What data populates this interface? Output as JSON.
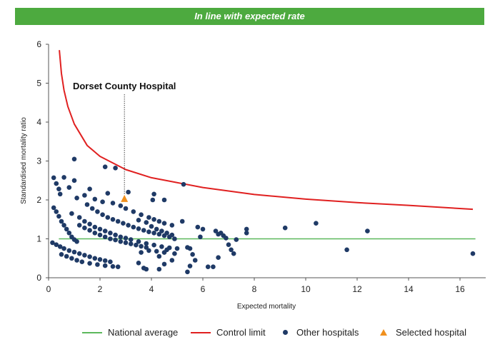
{
  "banner": {
    "text": "In line with expected rate"
  },
  "legend": {
    "national_average": "National average",
    "control_limit": "Control limit",
    "other_hospitals": "Other hospitals",
    "selected_hospital": "Selected hospital"
  },
  "colors": {
    "banner": "#4daa3f",
    "national_average": "#5cb85c",
    "control_limit": "#e02020",
    "other_hospitals": "#1f3a66",
    "selected_hospital": "#f0901e"
  },
  "chart_data": {
    "type": "scatter",
    "title": "",
    "xlabel": "Expected mortality",
    "ylabel": "Standardised mortality ratio",
    "xlim": [
      0,
      17
    ],
    "ylim": [
      0,
      6
    ],
    "xticks": [
      0,
      2,
      4,
      6,
      8,
      10,
      12,
      14,
      16
    ],
    "yticks": [
      0,
      1,
      2,
      3,
      4,
      5,
      6
    ],
    "grid": false,
    "legend_position": "bottom",
    "annotation": {
      "text": "Dorset County Hospital",
      "x": 2.95,
      "y": 2.0
    },
    "national_average": {
      "name": "National average",
      "x": [
        0.4,
        16.6
      ],
      "y": [
        1,
        1
      ]
    },
    "control_limit": {
      "name": "Control limit",
      "x": [
        0.42,
        0.5,
        0.6,
        0.75,
        1.0,
        1.5,
        2.0,
        3.0,
        4.0,
        6.0,
        8.0,
        10.0,
        12.0,
        14.0,
        16.5
      ],
      "y": [
        5.85,
        5.25,
        4.82,
        4.4,
        3.95,
        3.4,
        3.12,
        2.78,
        2.57,
        2.32,
        2.14,
        2.02,
        1.93,
        1.86,
        1.76
      ]
    },
    "selected_hospital": {
      "name": "Selected hospital",
      "x": 2.95,
      "y": 2.02
    },
    "other_hospitals": {
      "name": "Other hospitals",
      "points": [
        [
          0.2,
          2.57
        ],
        [
          0.3,
          2.42
        ],
        [
          0.4,
          2.28
        ],
        [
          0.45,
          2.15
        ],
        [
          0.6,
          2.58
        ],
        [
          0.8,
          2.32
        ],
        [
          1.0,
          3.05
        ],
        [
          1.0,
          2.5
        ],
        [
          1.1,
          2.05
        ],
        [
          1.4,
          2.12
        ],
        [
          1.6,
          2.28
        ],
        [
          1.8,
          2.02
        ],
        [
          2.2,
          2.85
        ],
        [
          2.6,
          2.82
        ],
        [
          2.3,
          2.17
        ],
        [
          2.1,
          1.95
        ],
        [
          3.1,
          2.2
        ],
        [
          4.1,
          2.15
        ],
        [
          4.05,
          2.0
        ],
        [
          4.5,
          2.0
        ],
        [
          5.25,
          2.4
        ],
        [
          0.2,
          1.8
        ],
        [
          0.3,
          1.7
        ],
        [
          0.4,
          1.58
        ],
        [
          0.5,
          1.45
        ],
        [
          0.6,
          1.35
        ],
        [
          0.7,
          1.25
        ],
        [
          0.8,
          1.15
        ],
        [
          0.9,
          1.05
        ],
        [
          1.0,
          0.98
        ],
        [
          1.1,
          0.93
        ],
        [
          0.9,
          1.65
        ],
        [
          1.2,
          1.55
        ],
        [
          1.4,
          1.45
        ],
        [
          1.6,
          1.38
        ],
        [
          1.8,
          1.3
        ],
        [
          2.0,
          1.25
        ],
        [
          2.2,
          1.2
        ],
        [
          2.4,
          1.15
        ],
        [
          2.6,
          1.1
        ],
        [
          2.8,
          1.05
        ],
        [
          3.0,
          1.02
        ],
        [
          3.2,
          0.98
        ],
        [
          3.5,
          0.93
        ],
        [
          3.8,
          0.88
        ],
        [
          4.1,
          0.84
        ],
        [
          4.4,
          0.8
        ],
        [
          4.7,
          0.77
        ],
        [
          1.2,
          1.35
        ],
        [
          1.4,
          1.28
        ],
        [
          1.6,
          1.22
        ],
        [
          1.8,
          1.15
        ],
        [
          2.0,
          1.1
        ],
        [
          2.2,
          1.05
        ],
        [
          2.4,
          1.0
        ],
        [
          2.6,
          0.97
        ],
        [
          2.8,
          0.93
        ],
        [
          3.0,
          0.9
        ],
        [
          3.2,
          0.87
        ],
        [
          3.4,
          0.84
        ],
        [
          3.6,
          0.81
        ],
        [
          3.8,
          0.78
        ],
        [
          0.15,
          0.9
        ],
        [
          0.3,
          0.85
        ],
        [
          0.45,
          0.8
        ],
        [
          0.6,
          0.75
        ],
        [
          0.8,
          0.7
        ],
        [
          1.0,
          0.66
        ],
        [
          1.2,
          0.62
        ],
        [
          1.4,
          0.58
        ],
        [
          1.6,
          0.54
        ],
        [
          1.8,
          0.5
        ],
        [
          2.0,
          0.47
        ],
        [
          2.2,
          0.44
        ],
        [
          2.4,
          0.41
        ],
        [
          0.5,
          0.6
        ],
        [
          0.7,
          0.55
        ],
        [
          0.9,
          0.5
        ],
        [
          1.1,
          0.45
        ],
        [
          1.3,
          0.41
        ],
        [
          1.6,
          0.37
        ],
        [
          1.9,
          0.34
        ],
        [
          2.2,
          0.31
        ],
        [
          2.5,
          0.29
        ],
        [
          2.7,
          0.28
        ],
        [
          1.5,
          1.88
        ],
        [
          1.7,
          1.78
        ],
        [
          1.9,
          1.7
        ],
        [
          2.1,
          1.62
        ],
        [
          2.3,
          1.55
        ],
        [
          2.5,
          1.5
        ],
        [
          2.7,
          1.45
        ],
        [
          2.9,
          1.4
        ],
        [
          3.1,
          1.35
        ],
        [
          3.3,
          1.3
        ],
        [
          3.5,
          1.26
        ],
        [
          3.7,
          1.22
        ],
        [
          3.9,
          1.18
        ],
        [
          4.1,
          1.15
        ],
        [
          4.3,
          1.12
        ],
        [
          4.5,
          1.08
        ],
        [
          4.7,
          1.05
        ],
        [
          2.5,
          1.92
        ],
        [
          2.8,
          1.85
        ],
        [
          3.0,
          1.78
        ],
        [
          3.3,
          1.7
        ],
        [
          3.6,
          1.62
        ],
        [
          3.9,
          1.55
        ],
        [
          4.1,
          1.5
        ],
        [
          4.3,
          1.45
        ],
        [
          4.5,
          1.4
        ],
        [
          4.8,
          1.35
        ],
        [
          3.5,
          1.48
        ],
        [
          3.8,
          1.42
        ],
        [
          4.0,
          1.32
        ],
        [
          4.2,
          1.25
        ],
        [
          4.4,
          1.2
        ],
        [
          4.6,
          1.15
        ],
        [
          4.8,
          1.1
        ],
        [
          4.9,
          1.0
        ],
        [
          3.5,
          0.38
        ],
        [
          3.7,
          0.25
        ],
        [
          3.8,
          0.22
        ],
        [
          4.5,
          0.35
        ],
        [
          4.8,
          0.45
        ],
        [
          4.3,
          0.55
        ],
        [
          4.5,
          0.65
        ],
        [
          4.9,
          0.62
        ],
        [
          3.6,
          0.65
        ],
        [
          3.9,
          0.7
        ],
        [
          4.2,
          0.68
        ],
        [
          4.6,
          0.72
        ],
        [
          5.0,
          0.75
        ],
        [
          4.3,
          0.22
        ],
        [
          5.2,
          1.45
        ],
        [
          5.4,
          0.78
        ],
        [
          5.5,
          0.75
        ],
        [
          5.6,
          0.6
        ],
        [
          5.7,
          0.45
        ],
        [
          5.5,
          0.3
        ],
        [
          5.4,
          0.15
        ],
        [
          5.8,
          1.3
        ],
        [
          5.9,
          1.05
        ],
        [
          6.0,
          1.25
        ],
        [
          6.2,
          0.28
        ],
        [
          6.4,
          0.28
        ],
        [
          6.5,
          1.2
        ],
        [
          6.6,
          1.12
        ],
        [
          6.7,
          1.15
        ],
        [
          6.8,
          1.08
        ],
        [
          6.9,
          1.02
        ],
        [
          7.0,
          0.85
        ],
        [
          7.1,
          0.72
        ],
        [
          7.2,
          0.62
        ],
        [
          7.3,
          0.98
        ],
        [
          6.6,
          0.52
        ],
        [
          7.7,
          1.25
        ],
        [
          7.7,
          1.15
        ],
        [
          9.2,
          1.28
        ],
        [
          10.4,
          1.4
        ],
        [
          11.6,
          0.72
        ],
        [
          12.4,
          1.2
        ],
        [
          16.5,
          0.62
        ]
      ]
    }
  }
}
